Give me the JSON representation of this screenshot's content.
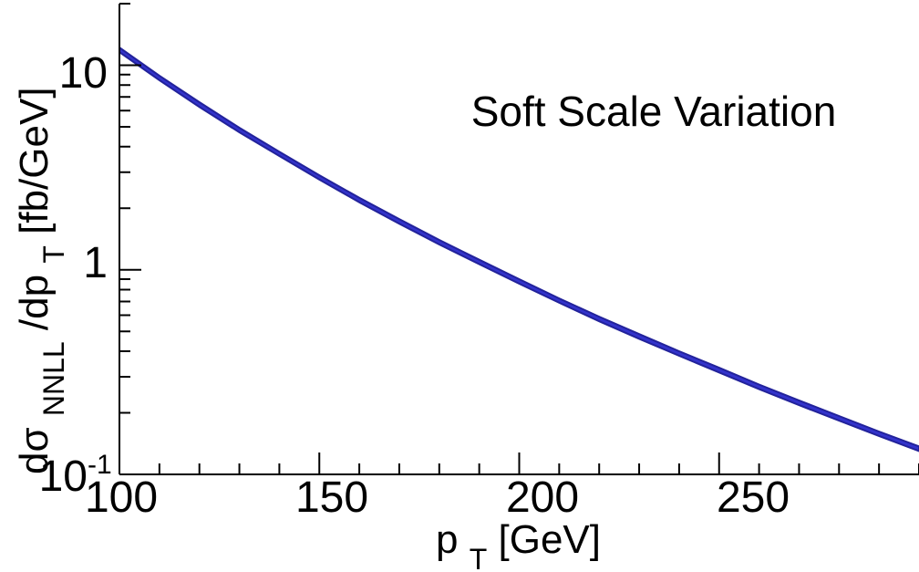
{
  "chart_data": {
    "type": "area",
    "annotation": "Soft Scale Variation",
    "xaxis": {
      "label_main": "p",
      "label_sub": "T",
      "label_unit": " [GeV]",
      "range": [
        100,
        300
      ],
      "ticks": [
        100,
        150,
        200,
        250
      ],
      "tick_labels": [
        "100",
        "150",
        "200",
        "250"
      ],
      "minor_step": 10
    },
    "yaxis": {
      "scale": "log",
      "range": [
        0.1,
        20
      ],
      "ticks": [
        0.1,
        1,
        10
      ],
      "tick_label_1": "1",
      "tick_label_10": "10",
      "tick_label_base": "10",
      "tick_label_exp": "-1",
      "label_d_sigma": "dσ",
      "label_sub_nnll": "NNLL",
      "label_mid": "/dp",
      "label_sub_t": "T",
      "label_unit": " [fb/GeV]"
    },
    "grid": false,
    "series": [
      {
        "color": "#3333cc",
        "edge_color": "#22229a",
        "x": [
          100,
          110,
          120,
          130,
          140,
          150,
          160,
          170,
          180,
          190,
          200,
          210,
          220,
          230,
          240,
          250,
          260,
          270,
          280,
          290,
          300
        ],
        "upper": [
          12.2,
          8.9,
          6.6,
          4.95,
          3.78,
          2.9,
          2.25,
          1.77,
          1.4,
          1.12,
          0.9,
          0.725,
          0.59,
          0.485,
          0.4,
          0.332,
          0.275,
          0.23,
          0.193,
          0.162,
          0.137
        ],
        "lower": [
          11.6,
          8.45,
          6.25,
          4.7,
          3.6,
          2.76,
          2.14,
          1.68,
          1.33,
          1.065,
          0.855,
          0.69,
          0.56,
          0.46,
          0.38,
          0.315,
          0.261,
          0.218,
          0.183,
          0.154,
          0.13
        ]
      }
    ]
  }
}
